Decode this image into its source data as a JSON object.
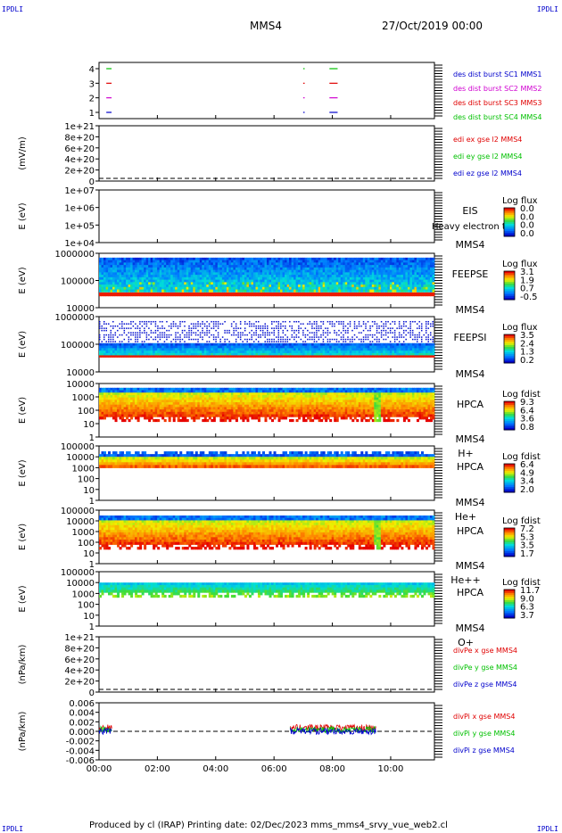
{
  "corners": {
    "tl": "IPDLI",
    "tr": "IPDLI",
    "bl": "IPDLI",
    "br": "IPDLI"
  },
  "header": {
    "spacecraft": "MMS4",
    "date": "27/Oct/2019 00:00"
  },
  "footer": {
    "text": "Produced by cl (IRAP)   Printing date: 02/Dec/2023   mms_mms4_srvy_vue_web2.cl"
  },
  "time_axis": {
    "ticks": [
      "00:00",
      "02:00",
      "04:00",
      "06:00",
      "08:00",
      "10:00"
    ],
    "range_hours": [
      0,
      11.5
    ]
  },
  "colors": {
    "red": "#e00000",
    "green": "#00c000",
    "blue": "#0000cc",
    "magenta": "#d000d0"
  },
  "chart_data": [
    {
      "type": "line",
      "id": "burst",
      "ylabel": "",
      "yticks": [
        "4",
        "3",
        "2",
        "1"
      ],
      "ylim": [
        0.5,
        4.5
      ],
      "legend": [
        {
          "label": "des dist burst SC1 MMS1",
          "color": "#0000cc"
        },
        {
          "label": "des dist burst SC2 MMS2",
          "color": "#d000d0"
        },
        {
          "label": "des dist burst SC3 MMS3",
          "color": "#e00000"
        },
        {
          "label": "des dist burst SC4 MMS4",
          "color": "#00c000"
        }
      ],
      "series": [
        {
          "level": 4,
          "color": "#00c000",
          "segments": [
            [
              0.25,
              0.4
            ],
            [
              7.0,
              7.02
            ],
            [
              7.9,
              8.15
            ]
          ]
        },
        {
          "level": 3,
          "color": "#e00000",
          "segments": [
            [
              0.25,
              0.4
            ],
            [
              7.0,
              7.02
            ],
            [
              7.9,
              8.15
            ]
          ]
        },
        {
          "level": 2,
          "color": "#d000d0",
          "segments": [
            [
              0.25,
              0.4
            ],
            [
              7.0,
              7.02
            ],
            [
              7.9,
              8.15
            ]
          ]
        },
        {
          "level": 1,
          "color": "#0000cc",
          "segments": [
            [
              0.25,
              0.4
            ],
            [
              7.0,
              7.02
            ],
            [
              7.9,
              8.15
            ]
          ]
        }
      ]
    },
    {
      "type": "line",
      "id": "edi",
      "ylabel": "(mV/m)",
      "yticks": [
        "1e+21",
        "8e+20",
        "6e+20",
        "4e+20",
        "2e+20",
        "0"
      ],
      "ylim": [
        0,
        1e+21
      ],
      "legend": [
        {
          "label": "edi ex gse l2 MMS4",
          "color": "#e00000"
        },
        {
          "label": "edi ey gse l2 MMS4",
          "color": "#00c000"
        },
        {
          "label": "edi ez gse l2 MMS4",
          "color": "#0000cc"
        }
      ],
      "zero_line": true
    },
    {
      "type": "heatmap",
      "id": "eis",
      "ylabel": "E (eV)",
      "yticks": [
        "1e+07",
        "1e+06",
        "1e+05",
        "1e+04"
      ],
      "instrument": [
        "EIS",
        "MMS4"
      ],
      "overlay_text": "Heavy electron to",
      "colorbar": {
        "title": "Log flux",
        "ticks": [
          "0.0",
          "0.0",
          "0.0",
          "0.0"
        ]
      },
      "fill": "none"
    },
    {
      "type": "heatmap",
      "id": "feepse",
      "ylabel": "E (eV)",
      "yticks": [
        "1000000",
        "100000",
        "10000"
      ],
      "instrument": [
        "FEEPSE",
        "MMS4"
      ],
      "colorbar": {
        "title": "Log flux",
        "ticks": [
          "3.1",
          "1.9",
          "0.7",
          "-0.5"
        ]
      },
      "fill": "feepse"
    },
    {
      "type": "heatmap",
      "id": "feepsi",
      "ylabel": "E (eV)",
      "yticks": [
        "1000000",
        "100000",
        "10000"
      ],
      "instrument": [
        "FEEPSI",
        "MMS4"
      ],
      "colorbar": {
        "title": "Log flux",
        "ticks": [
          "3.5",
          "2.4",
          "1.3",
          "0.2"
        ]
      },
      "fill": "feepsi"
    },
    {
      "type": "heatmap",
      "id": "hpca-h",
      "ylabel": "E (eV)",
      "yticks": [
        "10000",
        "1000",
        "100",
        "10",
        "1"
      ],
      "instrument": [
        "HPCA",
        "MMS4",
        "H+"
      ],
      "colorbar": {
        "title": "Log fdist",
        "ticks": [
          "9.3",
          "6.4",
          "3.6",
          "0.8"
        ]
      },
      "fill": "hpca-h"
    },
    {
      "type": "heatmap",
      "id": "hpca-he",
      "ylabel": "E (eV)",
      "yticks": [
        "100000",
        "10000",
        "1000",
        "100",
        "10",
        "1"
      ],
      "instrument": [
        "HPCA",
        "MMS4",
        "He+"
      ],
      "colorbar": {
        "title": "Log fdist",
        "ticks": [
          "6.4",
          "4.9",
          "3.4",
          "2.0"
        ]
      },
      "fill": "hpca-he"
    },
    {
      "type": "heatmap",
      "id": "hpca-he2",
      "ylabel": "E (eV)",
      "yticks": [
        "100000",
        "10000",
        "1000",
        "100",
        "10",
        "1"
      ],
      "instrument": [
        "HPCA",
        "MMS4",
        "He++"
      ],
      "colorbar": {
        "title": "Log fdist",
        "ticks": [
          "7.2",
          "5.3",
          "3.5",
          "1.7"
        ]
      },
      "fill": "hpca-he2"
    },
    {
      "type": "heatmap",
      "id": "hpca-o",
      "ylabel": "E (eV)",
      "yticks": [
        "100000",
        "10000",
        "1000",
        "100",
        "10",
        "1"
      ],
      "instrument": [
        "HPCA",
        "MMS4",
        "O+"
      ],
      "colorbar": {
        "title": "Log fdist",
        "ticks": [
          "11.7",
          "9.0",
          "6.3",
          "3.7"
        ]
      },
      "fill": "hpca-o"
    },
    {
      "type": "line",
      "id": "divpe",
      "ylabel": "(nPa/km)",
      "yticks": [
        "1e+21",
        "8e+20",
        "6e+20",
        "4e+20",
        "2e+20",
        "0"
      ],
      "ylim": [
        0,
        1e+21
      ],
      "legend": [
        {
          "label": "divPe x gse MMS4",
          "color": "#e00000"
        },
        {
          "label": "divPe y gse MMS4",
          "color": "#00c000"
        },
        {
          "label": "divPe z gse MMS4",
          "color": "#0000cc"
        }
      ],
      "zero_line": true
    },
    {
      "type": "line",
      "id": "divpi",
      "ylabel": "(nPa/km)",
      "yticks": [
        "0.006",
        "0.004",
        "0.002",
        "0.000",
        "-0.002",
        "-0.004",
        "-0.006"
      ],
      "ylim": [
        -0.007,
        0.007
      ],
      "legend": [
        {
          "label": "divPi x gse MMS4",
          "color": "#e00000"
        },
        {
          "label": "divPi y gse MMS4",
          "color": "#00c000"
        },
        {
          "label": "divPi z gse MMS4",
          "color": "#0000cc"
        }
      ],
      "zero_line": true,
      "active_intervals": [
        [
          0,
          0.45
        ],
        [
          6.55,
          9.5
        ]
      ]
    }
  ]
}
